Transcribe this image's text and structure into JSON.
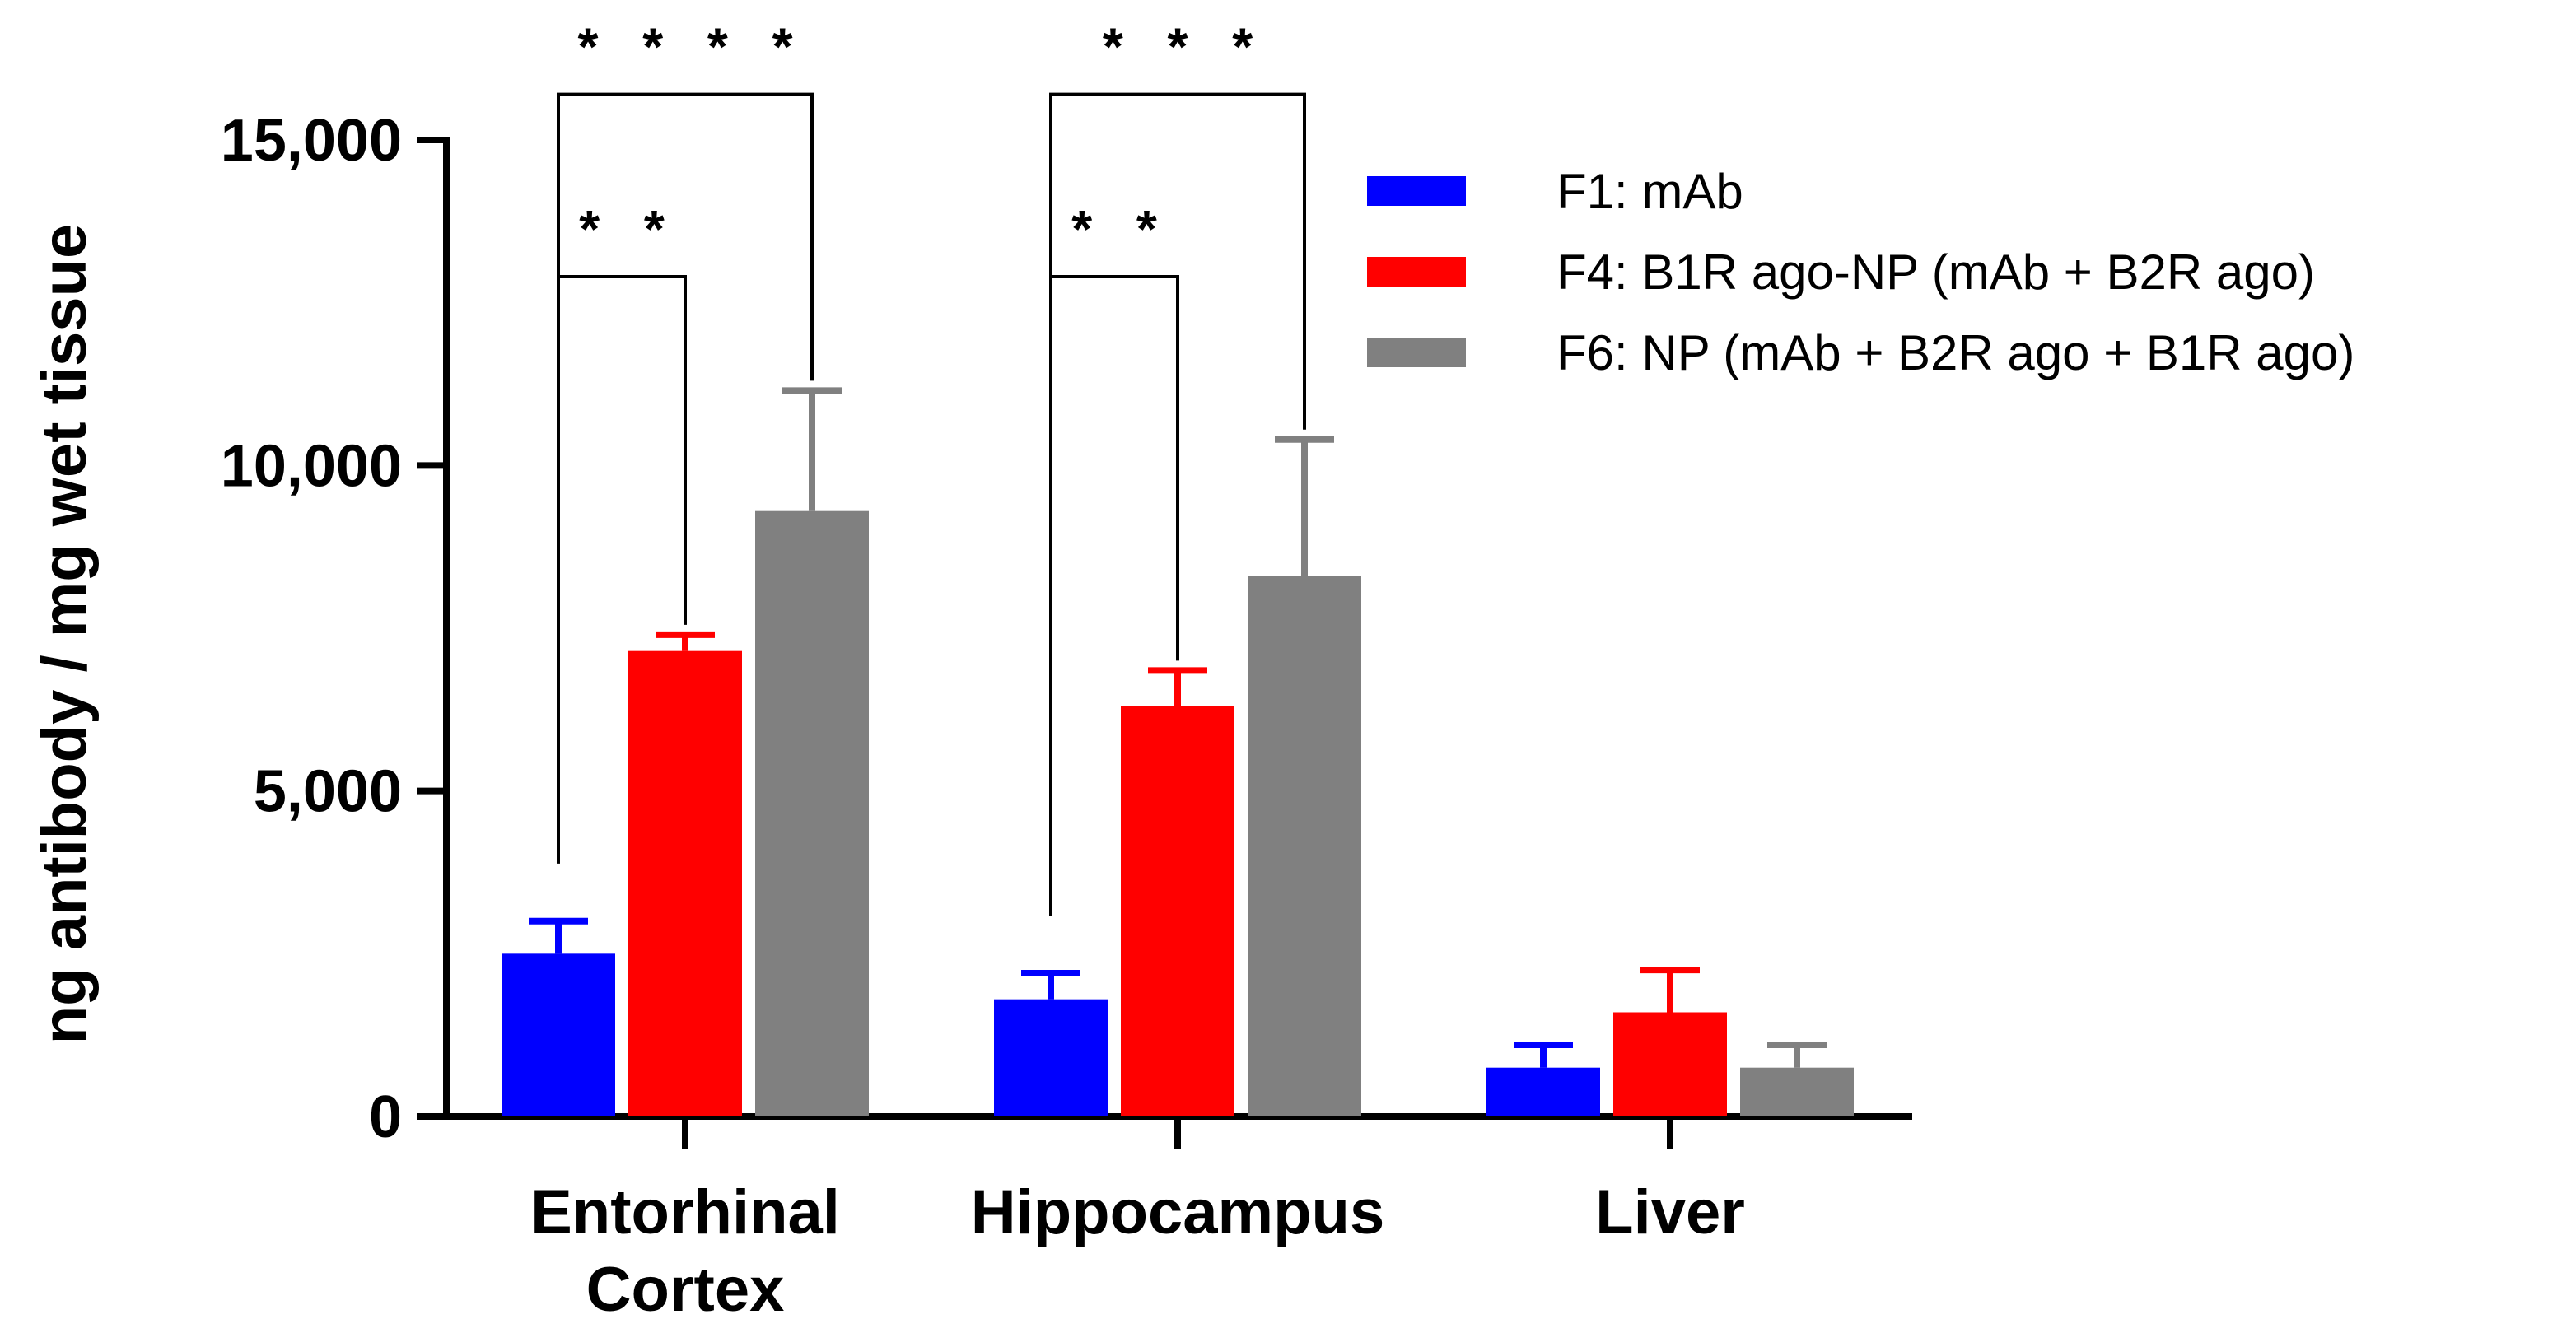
{
  "chart_data": {
    "type": "bar",
    "title": "",
    "xlabel": "",
    "ylabel": "ng antibody / mg wet tissue",
    "ylim": [
      0,
      15000
    ],
    "yticks": [
      0,
      5000,
      10000,
      15000
    ],
    "ytick_labels": [
      "0",
      "5,000",
      "10,000",
      "15,000"
    ],
    "categories": [
      [
        "Entorhinal",
        "Cortex"
      ],
      [
        "Hippocampus"
      ],
      [
        "Liver"
      ]
    ],
    "series": [
      {
        "name": "F1: mAb",
        "color": "#0000ff",
        "values": [
          2500,
          1800,
          750
        ],
        "errors": [
          500,
          400,
          350
        ]
      },
      {
        "name": "F4: B1R ago-NP (mAb + B2R ago)",
        "color": "#ff0000",
        "values": [
          7150,
          6300,
          1600
        ],
        "errors": [
          250,
          550,
          650
        ]
      },
      {
        "name": "F6: NP (mAb + B2R ago + B1R ago)",
        "color": "#808080",
        "values": [
          9300,
          8300,
          750
        ],
        "errors": [
          1850,
          2100,
          350
        ]
      }
    ],
    "significance": [
      {
        "category": 0,
        "from": 0,
        "to": 1,
        "label": "* *",
        "top": 12900
      },
      {
        "category": 0,
        "from": 0,
        "to": 2,
        "label": "* * * *",
        "top": 15700
      },
      {
        "category": 1,
        "from": 0,
        "to": 1,
        "label": "* *",
        "top": 12900
      },
      {
        "category": 1,
        "from": 0,
        "to": 2,
        "label": "* * *",
        "top": 15700
      }
    ],
    "legend_position": "top-right"
  }
}
